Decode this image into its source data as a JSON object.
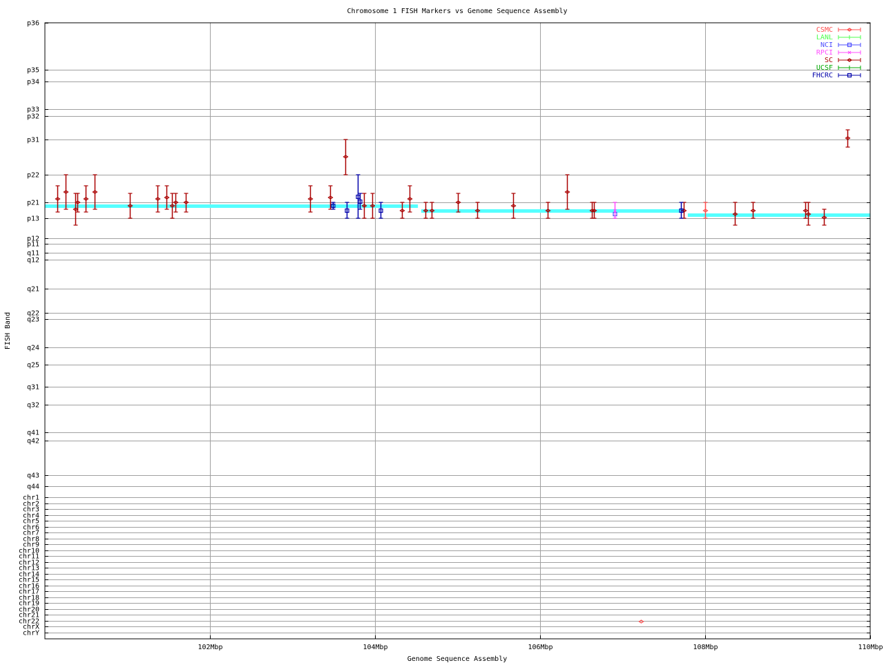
{
  "chart_data": {
    "type": "scatter",
    "title": "Chromosome 1 FISH Markers vs Genome Sequence Assembly",
    "xlabel": "Genome Sequence Assembly",
    "ylabel": "FISH Band",
    "xlim": [
      100,
      110
    ],
    "x_ticks": [
      {
        "value": 102,
        "label": "102Mbp"
      },
      {
        "value": 104,
        "label": "104Mbp"
      },
      {
        "value": 106,
        "label": "106Mbp"
      },
      {
        "value": 108,
        "label": "108Mbp"
      },
      {
        "value": 110,
        "label": "110Mbp"
      }
    ],
    "ylim": [
      0,
      892
    ],
    "y_reversed": true,
    "y_ticks": [
      {
        "value": 0,
        "label": "p36"
      },
      {
        "value": 68,
        "label": "p35"
      },
      {
        "value": 85,
        "label": "p34"
      },
      {
        "value": 125,
        "label": "p33"
      },
      {
        "value": 135,
        "label": "p32"
      },
      {
        "value": 169,
        "label": "p31"
      },
      {
        "value": 220,
        "label": "p22"
      },
      {
        "value": 260,
        "label": "p21"
      },
      {
        "value": 283,
        "label": "p13"
      },
      {
        "value": 312,
        "label": "p12"
      },
      {
        "value": 320,
        "label": "p11"
      },
      {
        "value": 333,
        "label": "q11"
      },
      {
        "value": 343,
        "label": "q12"
      },
      {
        "value": 385,
        "label": "q21"
      },
      {
        "value": 420,
        "label": "q22"
      },
      {
        "value": 429,
        "label": "q23"
      },
      {
        "value": 470,
        "label": "q24"
      },
      {
        "value": 495,
        "label": "q25"
      },
      {
        "value": 527,
        "label": "q31"
      },
      {
        "value": 553,
        "label": "q32"
      },
      {
        "value": 593,
        "label": "q41"
      },
      {
        "value": 605,
        "label": "q42"
      },
      {
        "value": 655,
        "label": "q43"
      },
      {
        "value": 671,
        "label": "q44"
      },
      {
        "value": 687,
        "label": "chr1"
      },
      {
        "value": 695.5,
        "label": "chr2"
      },
      {
        "value": 704,
        "label": "chr3"
      },
      {
        "value": 712.5,
        "label": "chr4"
      },
      {
        "value": 721,
        "label": "chr5"
      },
      {
        "value": 729.5,
        "label": "chr6"
      },
      {
        "value": 738,
        "label": "chr7"
      },
      {
        "value": 746.5,
        "label": "chr8"
      },
      {
        "value": 755,
        "label": "chr9"
      },
      {
        "value": 763.5,
        "label": "chr10"
      },
      {
        "value": 772,
        "label": "chr11"
      },
      {
        "value": 780.5,
        "label": "chr12"
      },
      {
        "value": 789,
        "label": "chr13"
      },
      {
        "value": 797.5,
        "label": "chr14"
      },
      {
        "value": 806,
        "label": "chr15"
      },
      {
        "value": 814.5,
        "label": "chr16"
      },
      {
        "value": 823,
        "label": "chr17"
      },
      {
        "value": 831.5,
        "label": "chr18"
      },
      {
        "value": 840,
        "label": "chr19"
      },
      {
        "value": 848.5,
        "label": "chr20"
      },
      {
        "value": 857,
        "label": "chr21"
      },
      {
        "value": 865.5,
        "label": "chr22"
      },
      {
        "value": 874,
        "label": "chrX"
      },
      {
        "value": 882.5,
        "label": "chrY"
      }
    ],
    "grid": true,
    "legend_position": "top-right",
    "assembly_color": "#55ffff",
    "assembly_segments": [
      {
        "x_start": 100,
        "x_end": 104.52,
        "y": 265
      },
      {
        "x_start": 104.56,
        "x_end": 107.74,
        "y": 272
      },
      {
        "x_start": 107.79,
        "x_end": 110,
        "y": 278
      }
    ],
    "series": [
      {
        "name": "CSMC",
        "color": "#ff4d4d",
        "marker": "diamond",
        "points": [
          [
            108.0,
            272,
            260,
            283
          ],
          [
            107.22,
            867,
            null,
            null
          ]
        ]
      },
      {
        "name": "LANL",
        "color": "#4dff4d",
        "marker": "tick",
        "points": []
      },
      {
        "name": "NCI",
        "color": "#4d4dff",
        "marker": "square",
        "points": [
          [
            106.9,
            277,
            null,
            null
          ]
        ]
      },
      {
        "name": "RPCI",
        "color": "#ff4dff",
        "marker": "cross",
        "points": [
          [
            106.9,
            272,
            260,
            283
          ]
        ]
      },
      {
        "name": "SC",
        "color": "#aa0000",
        "marker": "diamond",
        "points": [
          [
            100.15,
            255,
            236,
            274
          ],
          [
            100.25,
            245,
            220,
            270
          ],
          [
            100.37,
            270,
            247,
            293
          ],
          [
            100.39,
            260,
            247,
            274
          ],
          [
            100.49,
            255,
            236,
            274
          ],
          [
            100.6,
            245,
            220,
            270
          ],
          [
            101.03,
            265,
            247,
            283
          ],
          [
            101.36,
            255,
            236,
            274
          ],
          [
            101.47,
            253,
            236,
            270
          ],
          [
            101.54,
            265,
            247,
            283
          ],
          [
            101.58,
            260,
            247,
            274
          ],
          [
            101.71,
            260,
            247,
            274
          ],
          [
            103.21,
            255,
            236,
            274
          ],
          [
            103.46,
            253,
            236,
            270
          ],
          [
            103.64,
            194,
            169,
            220
          ],
          [
            103.87,
            265,
            247,
            283
          ],
          [
            103.97,
            265,
            247,
            283
          ],
          [
            104.33,
            272,
            260,
            283
          ],
          [
            104.42,
            255,
            236,
            274
          ],
          [
            104.61,
            272,
            260,
            283
          ],
          [
            104.69,
            272,
            260,
            283
          ],
          [
            105.0,
            260,
            247,
            274
          ],
          [
            105.24,
            272,
            260,
            283
          ],
          [
            105.67,
            265,
            247,
            283
          ],
          [
            106.09,
            272,
            260,
            283
          ],
          [
            106.33,
            245,
            220,
            270
          ],
          [
            106.63,
            272,
            260,
            283
          ],
          [
            106.65,
            272,
            260,
            283
          ],
          [
            107.74,
            272,
            260,
            283
          ],
          [
            108.36,
            277,
            260,
            293
          ],
          [
            108.58,
            272,
            260,
            283
          ],
          [
            109.21,
            272,
            260,
            283
          ],
          [
            109.25,
            277,
            260,
            293
          ],
          [
            109.44,
            282,
            270,
            293
          ],
          [
            109.72,
            167,
            155,
            180
          ]
        ]
      },
      {
        "name": "UCSF",
        "color": "#00aa00",
        "marker": "tick",
        "points": []
      },
      {
        "name": "FHCRC",
        "color": "#0000aa",
        "marker": "square",
        "points": [
          [
            103.49,
            265,
            260,
            270
          ],
          [
            103.66,
            272,
            260,
            283
          ],
          [
            103.79,
            252,
            220,
            283
          ],
          [
            103.82,
            259,
            247,
            270
          ],
          [
            104.07,
            272,
            260,
            283
          ],
          [
            107.71,
            272,
            260,
            283
          ]
        ]
      }
    ]
  }
}
